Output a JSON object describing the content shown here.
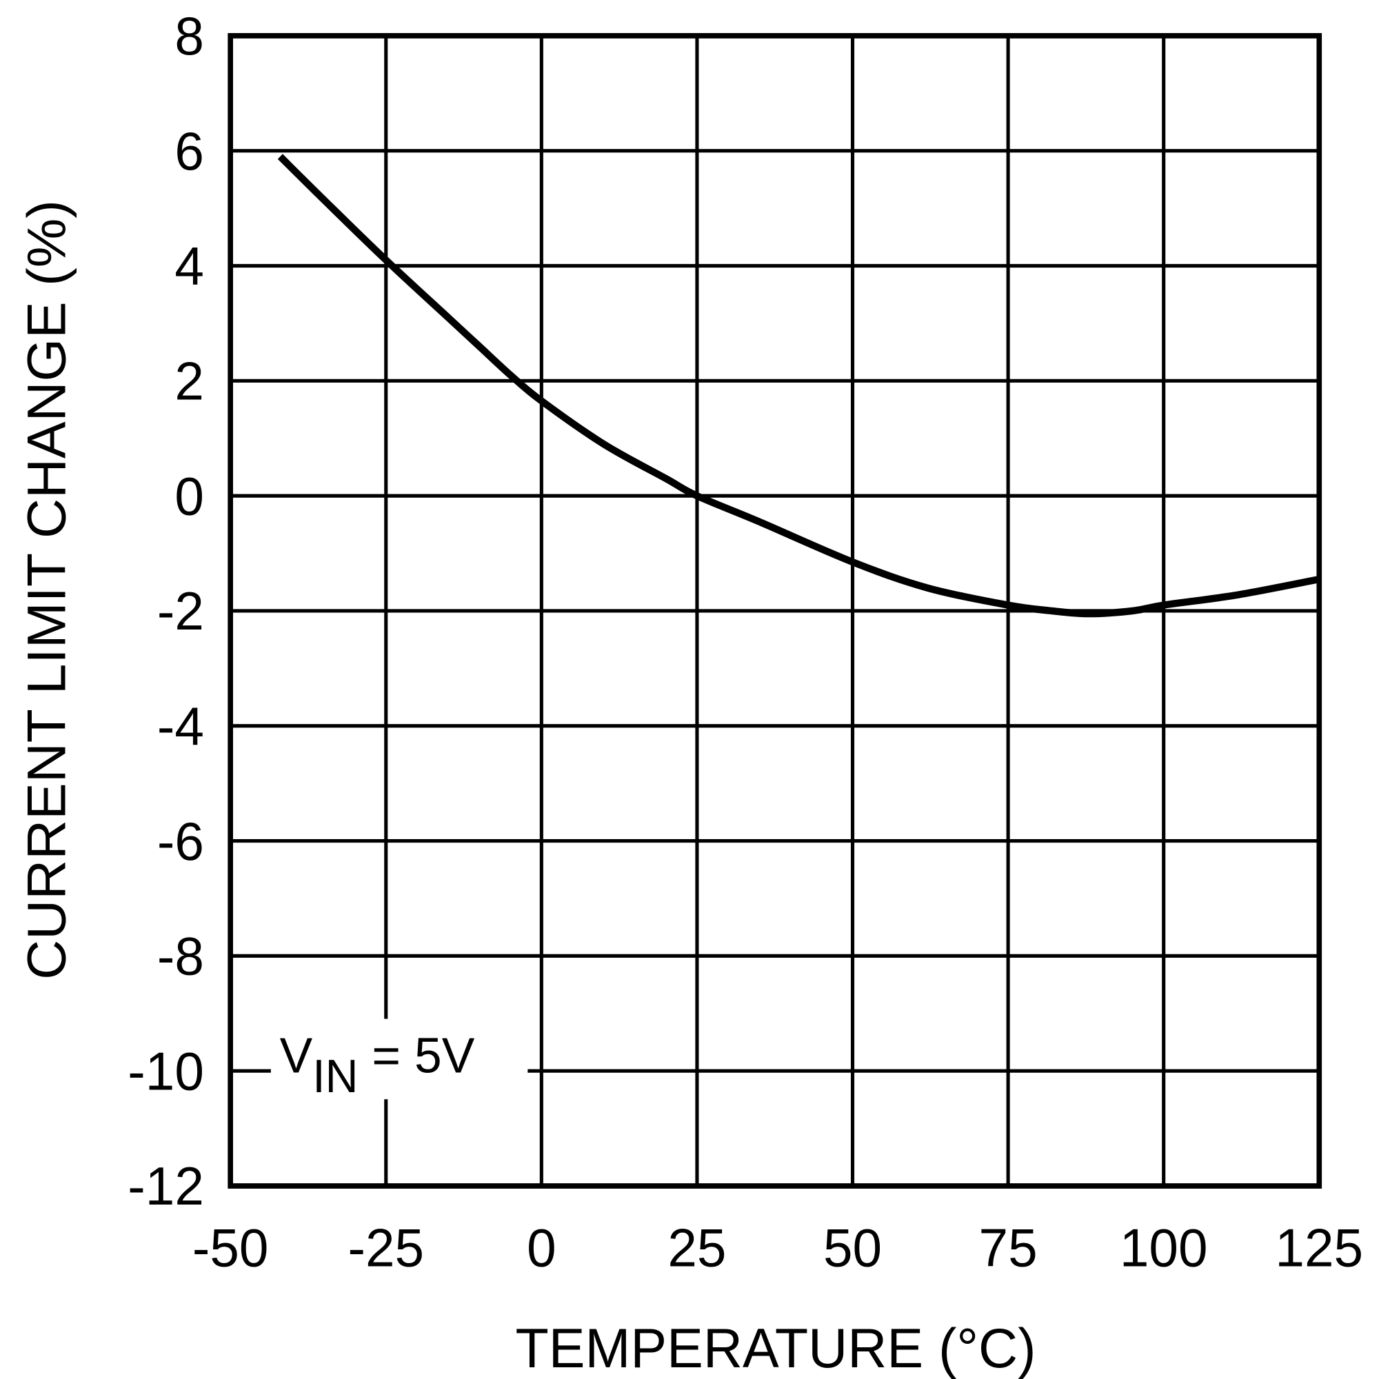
{
  "chart_data": {
    "type": "line",
    "title": "",
    "xlabel": "TEMPERATURE (°C)",
    "xlabel_parts": {
      "main": "TEMPERATURE (",
      "degree": "o",
      "unit": "C)"
    },
    "ylabel": "CURRENT LIMIT CHANGE (%)",
    "xlim": [
      -50,
      125
    ],
    "ylim": [
      -12,
      8
    ],
    "xticks": [
      -50,
      -25,
      0,
      25,
      50,
      75,
      100,
      125
    ],
    "xtick_labels": [
      "-50",
      "-25",
      "0",
      "25",
      "50",
      "75",
      "100",
      "125"
    ],
    "yticks": [
      8,
      6,
      4,
      2,
      0,
      -2,
      -4,
      -6,
      -8,
      -10,
      -12
    ],
    "ytick_labels": [
      "8",
      "6",
      "4",
      "2",
      "0",
      "-2",
      "-4",
      "-6",
      "-8",
      "-10",
      "-12"
    ],
    "grid": true,
    "line_color": "#000000",
    "annotation": {
      "main": "V",
      "sub": "IN",
      "rest": " = 5V"
    },
    "series": [
      {
        "x": [
          -42,
          -35,
          -25,
          -15,
          -10,
          -5,
          0,
          10,
          20,
          25,
          35,
          50,
          62,
          75,
          82,
          88,
          95,
          100,
          112,
          125
        ],
        "y": [
          5.9,
          5.15,
          4.1,
          3.1,
          2.6,
          2.1,
          1.65,
          0.9,
          0.3,
          0.0,
          -0.45,
          -1.15,
          -1.6,
          -1.9,
          -2.0,
          -2.05,
          -2.0,
          -1.9,
          -1.72,
          -1.45
        ]
      }
    ]
  }
}
